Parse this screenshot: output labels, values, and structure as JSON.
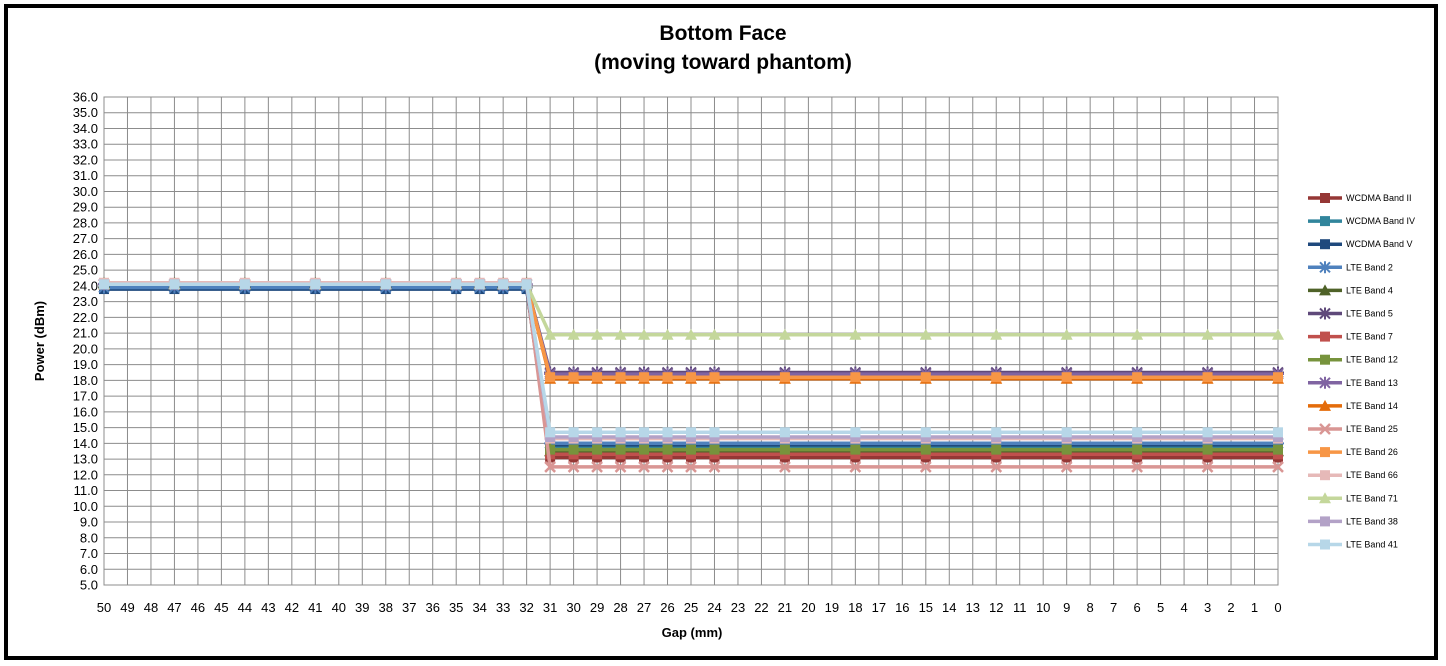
{
  "chart_data": {
    "type": "line",
    "title": "Bottom Face",
    "subtitle": "(moving toward phantom)",
    "xlabel": "Gap (mm)",
    "ylabel": "Power (dBm)",
    "ylim": [
      5.0,
      36.0
    ],
    "xlim": [
      50,
      0
    ],
    "x_reversed": true,
    "y_ticks": [
      "5.0",
      "6.0",
      "7.0",
      "8.0",
      "9.0",
      "10.0",
      "11.0",
      "12.0",
      "13.0",
      "14.0",
      "15.0",
      "16.0",
      "17.0",
      "18.0",
      "19.0",
      "20.0",
      "21.0",
      "22.0",
      "23.0",
      "24.0",
      "25.0",
      "26.0",
      "27.0",
      "28.0",
      "29.0",
      "30.0",
      "31.0",
      "32.0",
      "33.0",
      "34.0",
      "35.0",
      "36.0"
    ],
    "x_ticks": [
      "50",
      "49",
      "48",
      "47",
      "46",
      "45",
      "44",
      "43",
      "42",
      "41",
      "40",
      "39",
      "38",
      "37",
      "36",
      "35",
      "34",
      "33",
      "32",
      "31",
      "30",
      "29",
      "28",
      "27",
      "26",
      "25",
      "24",
      "23",
      "22",
      "21",
      "20",
      "19",
      "18",
      "17",
      "16",
      "15",
      "14",
      "13",
      "12",
      "11",
      "10",
      "9",
      "8",
      "7",
      "6",
      "5",
      "4",
      "3",
      "2",
      "1",
      "0"
    ],
    "grid": true,
    "legend_position": "right",
    "x": [
      50,
      47,
      44,
      41,
      38,
      35,
      34,
      33,
      32,
      31,
      30,
      29,
      28,
      27,
      26,
      25,
      24,
      21,
      18,
      15,
      12,
      9,
      6,
      3,
      0
    ],
    "series": [
      {
        "name": "WCDMA Band II",
        "color": "#953735",
        "marker": "square",
        "low": 13.1
      },
      {
        "name": "WCDMA Band IV",
        "color": "#31859c",
        "marker": "square",
        "low": 13.8
      },
      {
        "name": "WCDMA Band V",
        "color": "#1f497d",
        "marker": "square",
        "low": 13.9
      },
      {
        "name": "LTE Band 2",
        "color": "#4f81bd",
        "marker": "star",
        "low": 14.0
      },
      {
        "name": "LTE Band 4",
        "color": "#4f6228",
        "marker": "triangle",
        "low": 13.5
      },
      {
        "name": "LTE Band 5",
        "color": "#5f497a",
        "marker": "star",
        "low": 18.5
      },
      {
        "name": "LTE Band 7",
        "color": "#c0504d",
        "marker": "square",
        "low": 13.3
      },
      {
        "name": "LTE Band 12",
        "color": "#77933c",
        "marker": "square",
        "low": 13.6
      },
      {
        "name": "LTE Band 13",
        "color": "#8064a2",
        "marker": "star",
        "low": 18.4
      },
      {
        "name": "LTE Band 14",
        "color": "#e46c0a",
        "marker": "triangle",
        "low": 18.1
      },
      {
        "name": "LTE Band 25",
        "color": "#d99694",
        "marker": "x",
        "low": 12.5
      },
      {
        "name": "LTE Band 26",
        "color": "#f79646",
        "marker": "square",
        "low": 18.2
      },
      {
        "name": "LTE Band 66",
        "color": "#e6b9b8",
        "marker": "square",
        "low": 14.3
      },
      {
        "name": "LTE Band 71",
        "color": "#c4d79b",
        "marker": "triangle",
        "low": 20.9
      },
      {
        "name": "LTE Band 38",
        "color": "#b3a2c7",
        "marker": "square",
        "low": 14.4
      },
      {
        "name": "LTE Band 41",
        "color": "#b7d7e8",
        "marker": "square",
        "low": 14.7
      }
    ],
    "high_values": {
      "default": 24.1,
      "WCDMA Band II": 23.9,
      "WCDMA Band V": 23.8,
      "LTE Band 2": 23.9,
      "LTE Band 4": 24.2,
      "LTE Band 66": 24.2
    },
    "note_high_region": "x >= 32"
  }
}
